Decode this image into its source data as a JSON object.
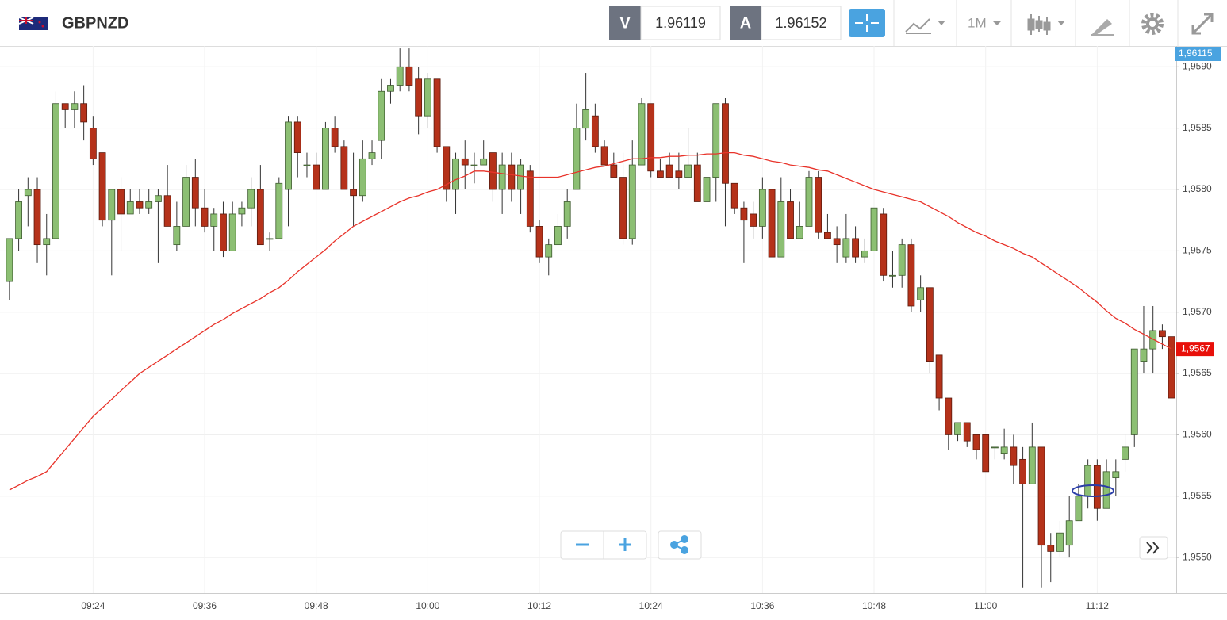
{
  "header": {
    "symbol": "GBPNZD",
    "sell_label": "V",
    "sell_price": 1.96119,
    "buy_label": "A",
    "buy_price": 1.96152,
    "timeframe": "1M"
  },
  "chart_data": {
    "type": "candlestick",
    "categories": [
      null,
      null,
      null,
      null,
      null,
      null,
      null,
      null,
      null,
      "09:24",
      null,
      null,
      null,
      null,
      null,
      null,
      null,
      null,
      null,
      null,
      null,
      "09:36",
      null,
      null,
      null,
      null,
      null,
      null,
      null,
      null,
      null,
      null,
      null,
      "09:48",
      null,
      null,
      null,
      null,
      null,
      null,
      null,
      null,
      null,
      null,
      null,
      "10:00",
      null,
      null,
      null,
      null,
      null,
      null,
      null,
      null,
      null,
      null,
      null,
      "10:12",
      null,
      null,
      null,
      null,
      null,
      null,
      null,
      null,
      null,
      null,
      null,
      "10:24",
      null,
      null,
      null,
      null,
      null,
      null,
      null,
      null,
      null,
      null,
      null,
      "10:36",
      null,
      null,
      null,
      null,
      null,
      null,
      null,
      null,
      null,
      null,
      null,
      "10:48",
      null,
      null,
      null,
      null,
      null,
      null,
      null,
      null,
      null,
      null,
      null,
      "11:00",
      null,
      null,
      null,
      null,
      null,
      null,
      null,
      null,
      null,
      null,
      null,
      "11:12",
      null,
      null,
      null,
      null,
      null,
      null,
      null,
      null
    ],
    "open": [
      1.95725,
      1.9576,
      1.95795,
      1.958,
      1.95755,
      1.9576,
      1.9587,
      1.95865,
      1.9587,
      1.9585,
      1.9583,
      1.95775,
      1.958,
      1.9578,
      1.9579,
      1.95785,
      1.9579,
      1.95795,
      1.95755,
      1.9577,
      1.9581,
      1.95785,
      1.9577,
      1.9578,
      1.9575,
      1.9578,
      1.95785,
      1.958,
      1.9576,
      1.9576,
      1.958,
      1.95855,
      1.9582,
      1.9582,
      1.958,
      1.9585,
      1.95835,
      1.958,
      1.95795,
      1.95825,
      1.9584,
      1.9588,
      1.95885,
      1.959,
      1.9589,
      1.9586,
      1.9589,
      1.95835,
      1.958,
      1.95825,
      1.9582,
      1.9582,
      1.9583,
      1.958,
      1.9582,
      1.958,
      1.95815,
      1.9577,
      1.95745,
      1.95755,
      1.9577,
      1.958,
      1.9585,
      1.9586,
      1.95835,
      1.9582,
      1.9581,
      1.9576,
      1.9582,
      1.9587,
      1.95815,
      1.9582,
      1.95815,
      1.9581,
      1.9582,
      1.9579,
      1.9581,
      1.9587,
      1.95805,
      1.95785,
      1.9578,
      1.9577,
      1.958,
      1.95745,
      1.9579,
      1.9576,
      1.9577,
      1.9581,
      1.95765,
      1.9576,
      1.95745,
      1.9576,
      1.95745,
      1.9575,
      1.9578,
      1.9573,
      1.9573,
      1.95755,
      1.9571,
      1.9572,
      1.95665,
      1.9563,
      1.956,
      1.9561,
      1.956,
      1.956,
      1.9559,
      1.95585,
      1.9559,
      1.9558,
      1.9556,
      1.9559,
      1.9551,
      1.95505,
      1.9551,
      1.9553,
      1.9555,
      1.95575,
      1.9554,
      1.95565,
      1.9558,
      1.956,
      1.9566,
      1.9567,
      1.95685,
      1.9568
    ],
    "high": [
      1.9576,
      1.958,
      1.9581,
      1.9581,
      1.9578,
      1.9588,
      1.9587,
      1.9588,
      1.95885,
      1.9586,
      1.9583,
      1.958,
      1.9581,
      1.958,
      1.958,
      1.958,
      1.958,
      1.9582,
      1.9579,
      1.9582,
      1.95825,
      1.958,
      1.95785,
      1.9579,
      1.9579,
      1.9579,
      1.9581,
      1.9582,
      1.95765,
      1.9581,
      1.9586,
      1.9586,
      1.9583,
      1.9583,
      1.95855,
      1.9586,
      1.9584,
      1.9583,
      1.9584,
      1.9584,
      1.9589,
      1.9589,
      1.95915,
      1.95915,
      1.959,
      1.95895,
      1.9589,
      1.95835,
      1.9583,
      1.9584,
      1.9583,
      1.9584,
      1.9583,
      1.9583,
      1.9583,
      1.95825,
      1.9582,
      1.95775,
      1.9576,
      1.9578,
      1.958,
      1.9587,
      1.95895,
      1.9587,
      1.9584,
      1.9583,
      1.9583,
      1.9584,
      1.95875,
      1.9587,
      1.95825,
      1.9583,
      1.9583,
      1.9585,
      1.9583,
      1.9581,
      1.9587,
      1.95875,
      1.95805,
      1.9579,
      1.9579,
      1.9581,
      1.958,
      1.9581,
      1.958,
      1.9579,
      1.95815,
      1.95815,
      1.9578,
      1.9577,
      1.9578,
      1.9577,
      1.9576,
      1.95785,
      1.95785,
      1.9575,
      1.9576,
      1.9576,
      1.9573,
      1.9572,
      1.95665,
      1.9563,
      1.9561,
      1.9561,
      1.956,
      1.956,
      1.9559,
      1.95605,
      1.956,
      1.9559,
      1.9561,
      1.9559,
      1.9552,
      1.9553,
      1.9555,
      1.9556,
      1.9558,
      1.9558,
      1.9558,
      1.9558,
      1.956,
      1.9567,
      1.95705,
      1.95705,
      1.9569,
      1.9568
    ],
    "low": [
      1.9571,
      1.9575,
      1.9577,
      1.9574,
      1.9573,
      1.9576,
      1.9585,
      1.9585,
      1.9584,
      1.9582,
      1.9577,
      1.9573,
      1.9575,
      1.9578,
      1.9578,
      1.9578,
      1.9574,
      1.9577,
      1.9575,
      1.9577,
      1.9577,
      1.95765,
      1.9575,
      1.95745,
      1.9575,
      1.9577,
      1.9577,
      1.95755,
      1.9575,
      1.9576,
      1.9577,
      1.9581,
      1.9581,
      1.958,
      1.958,
      1.9583,
      1.958,
      1.9577,
      1.9579,
      1.9582,
      1.95825,
      1.9587,
      1.9588,
      1.9588,
      1.95845,
      1.9585,
      1.9583,
      1.9579,
      1.9578,
      1.958,
      1.95805,
      1.9582,
      1.9579,
      1.9578,
      1.9579,
      1.9578,
      1.95765,
      1.9574,
      1.9573,
      1.95755,
      1.9576,
      1.958,
      1.9584,
      1.9583,
      1.9582,
      1.9581,
      1.95755,
      1.95755,
      1.9582,
      1.9581,
      1.9581,
      1.9581,
      1.958,
      1.9581,
      1.9579,
      1.9579,
      1.9579,
      1.9577,
      1.9578,
      1.9574,
      1.9576,
      1.9576,
      1.95745,
      1.95745,
      1.9576,
      1.9576,
      1.9577,
      1.9576,
      1.9576,
      1.9574,
      1.9574,
      1.9574,
      1.9574,
      1.9575,
      1.95725,
      1.9572,
      1.9572,
      1.957,
      1.957,
      1.9565,
      1.9562,
      1.95588,
      1.95595,
      1.9559,
      1.9558,
      1.9557,
      1.9558,
      1.9558,
      1.9556,
      1.95475,
      1.9556,
      1.95475,
      1.9548,
      1.955,
      1.955,
      1.9553,
      1.9554,
      1.9553,
      1.9554,
      1.9555,
      1.9557,
      1.9559,
      1.9565,
      1.9565,
      1.9567,
      1.9563
    ],
    "close": [
      1.9576,
      1.9579,
      1.958,
      1.95755,
      1.9576,
      1.9587,
      1.95865,
      1.9587,
      1.95855,
      1.95825,
      1.95775,
      1.958,
      1.9578,
      1.9579,
      1.95785,
      1.9579,
      1.95795,
      1.9577,
      1.9577,
      1.9581,
      1.95785,
      1.9577,
      1.9578,
      1.9575,
      1.9578,
      1.95785,
      1.958,
      1.95755,
      1.9576,
      1.95805,
      1.95855,
      1.9583,
      1.9582,
      1.958,
      1.9585,
      1.95835,
      1.958,
      1.95795,
      1.95825,
      1.9583,
      1.9588,
      1.95885,
      1.959,
      1.95885,
      1.9586,
      1.9589,
      1.95835,
      1.958,
      1.95825,
      1.9582,
      1.9582,
      1.95825,
      1.958,
      1.9582,
      1.958,
      1.9582,
      1.9577,
      1.95745,
      1.95755,
      1.9577,
      1.9579,
      1.9585,
      1.95865,
      1.95835,
      1.9582,
      1.9581,
      1.9576,
      1.9582,
      1.9587,
      1.95815,
      1.9581,
      1.9581,
      1.9581,
      1.9582,
      1.9579,
      1.9581,
      1.9587,
      1.95805,
      1.95785,
      1.95775,
      1.9577,
      1.958,
      1.95745,
      1.9579,
      1.9576,
      1.9577,
      1.9581,
      1.95765,
      1.9576,
      1.95755,
      1.9576,
      1.95745,
      1.9575,
      1.95785,
      1.9573,
      1.9573,
      1.95755,
      1.95705,
      1.9572,
      1.9566,
      1.9563,
      1.956,
      1.9561,
      1.95595,
      1.95588,
      1.9557,
      1.9559,
      1.9559,
      1.95575,
      1.9556,
      1.9559,
      1.9551,
      1.95505,
      1.9552,
      1.9553,
      1.9555,
      1.95575,
      1.9554,
      1.9557,
      1.9557,
      1.9559,
      1.9567,
      1.9567,
      1.95685,
      1.9568,
      1.9563
    ],
    "up_color": "#8cbf73",
    "down_color": "#b5321a",
    "series": [
      {
        "color": "#e8332a",
        "values": [
          1.95555,
          1.95559,
          1.95563,
          1.95566,
          1.9557,
          1.95579,
          1.95588,
          1.95597,
          1.95606,
          1.95615,
          1.95622,
          1.95629,
          1.95636,
          1.95643,
          1.9565,
          1.95655,
          1.9566,
          1.95665,
          1.9567,
          1.95675,
          1.9568,
          1.95685,
          1.9569,
          1.95694,
          1.95699,
          1.95703,
          1.95707,
          1.95711,
          1.95716,
          1.9572,
          1.95726,
          1.95733,
          1.95739,
          1.95745,
          1.95751,
          1.95758,
          1.95764,
          1.9577,
          1.95774,
          1.95778,
          1.95782,
          1.95786,
          1.9579,
          1.95793,
          1.95795,
          1.95798,
          1.958,
          1.95804,
          1.95808,
          1.95811,
          1.95815,
          1.95815,
          1.95814,
          1.95813,
          1.95812,
          1.95811,
          1.9581,
          1.9581,
          1.9581,
          1.9581,
          1.95812,
          1.95814,
          1.95816,
          1.95818,
          1.95819,
          1.95821,
          1.95823,
          1.95825,
          1.95825,
          1.95826,
          1.95826,
          1.95827,
          1.95827,
          1.95828,
          1.95828,
          1.95829,
          1.95829,
          1.9583,
          1.9583,
          1.95828,
          1.95827,
          1.95825,
          1.95823,
          1.95822,
          1.9582,
          1.95819,
          1.95818,
          1.95816,
          1.95815,
          1.95812,
          1.95809,
          1.95806,
          1.95803,
          1.958,
          1.95798,
          1.95796,
          1.95794,
          1.95792,
          1.9579,
          1.95786,
          1.95782,
          1.95778,
          1.95773,
          1.95769,
          1.95765,
          1.95762,
          1.95758,
          1.95755,
          1.95752,
          1.95748,
          1.95745,
          1.9574,
          1.95735,
          1.9573,
          1.95725,
          1.9572,
          1.95714,
          1.95708,
          1.95701,
          1.95695,
          1.95691,
          1.95686,
          1.95682,
          1.95678,
          1.95674,
          1.9567
        ]
      }
    ],
    "ylim": [
      1.95471,
      1.95917
    ],
    "yticks": [
      {
        "value": 1.955,
        "label": "1,9550"
      },
      {
        "value": 1.9555,
        "label": "1,9555"
      },
      {
        "value": 1.956,
        "label": "1,9560"
      },
      {
        "value": 1.9565,
        "label": "1,9565"
      },
      {
        "value": 1.957,
        "label": "1,9570"
      },
      {
        "value": 1.9575,
        "label": "1,9575"
      },
      {
        "value": 1.958,
        "label": "1,9580"
      },
      {
        "value": 1.9585,
        "label": "1,9585"
      },
      {
        "value": 1.959,
        "label": "1,9590"
      }
    ],
    "grid": true,
    "bid_tag": {
      "value": 1.96115,
      "label": "1,96115"
    },
    "last_price": {
      "value": 1.9567,
      "label": "1,9567"
    }
  }
}
